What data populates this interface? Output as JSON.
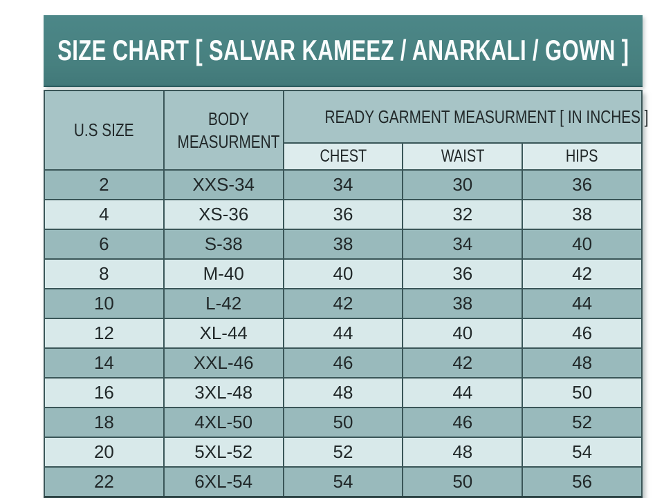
{
  "title": "SIZE CHART [ SALVAR KAMEEZ / ANARKALI / GOWN ]",
  "table": {
    "headers": {
      "us_size": "U.S SIZE",
      "body_measurement": "BODY MEASURMENT",
      "ready_garment": "READY GARMENT MEASURMENT [ IN INCHES ]",
      "chest": "CHEST",
      "waist": "WAIST",
      "hips": "HIPS"
    },
    "rows": [
      [
        "2",
        "XXS-34",
        "34",
        "30",
        "36"
      ],
      [
        "4",
        "XS-36",
        "36",
        "32",
        "38"
      ],
      [
        "6",
        "S-38",
        "38",
        "34",
        "40"
      ],
      [
        "8",
        "M-40",
        "40",
        "36",
        "42"
      ],
      [
        "10",
        "L-42",
        "42",
        "38",
        "44"
      ],
      [
        "12",
        "XL-44",
        "44",
        "40",
        "46"
      ],
      [
        "14",
        "XXL-46",
        "46",
        "42",
        "48"
      ],
      [
        "16",
        "3XL-48",
        "48",
        "44",
        "50"
      ],
      [
        "18",
        "4XL-50",
        "50",
        "46",
        "52"
      ],
      [
        "20",
        "5XL-52",
        "52",
        "48",
        "54"
      ],
      [
        "22",
        "6XL-54",
        "54",
        "50",
        "56"
      ]
    ]
  },
  "colors": {
    "title_bar": "#47807f",
    "header_cell": "#a7c4c6",
    "subheader_cell": "#ddeced",
    "row_dark": "#99babc",
    "row_light": "#d8e9ea",
    "border": "#3a5658",
    "outer_border": "#2c4344",
    "title_text": "#fafdfd",
    "body_text": "#212829"
  }
}
